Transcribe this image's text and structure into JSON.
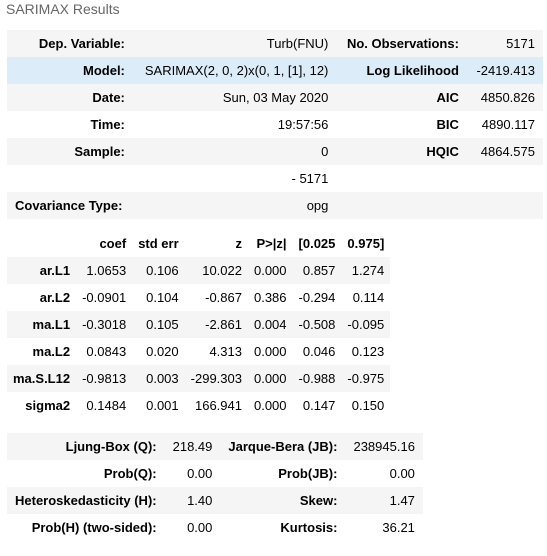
{
  "caption": "SARIMAX Results",
  "summary": {
    "rows": [
      [
        "Dep. Variable:",
        "Turb(FNU)",
        "No. Observations:",
        "5171"
      ],
      [
        "Model:",
        "SARIMAX(2, 0, 2)x(0, 1, [1], 12)",
        "Log Likelihood",
        "-2419.413"
      ],
      [
        "Date:",
        "Sun, 03 May 2020",
        "AIC",
        "4850.826"
      ],
      [
        "Time:",
        "19:57:56",
        "BIC",
        "4890.117"
      ],
      [
        "Sample:",
        "0",
        "HQIC",
        "4864.575"
      ],
      [
        "",
        "- 5171",
        "",
        ""
      ],
      [
        "Covariance Type:",
        "opg",
        "",
        ""
      ]
    ]
  },
  "coef": {
    "headers": [
      "",
      "coef",
      "std err",
      "z",
      "P>|z|",
      "[0.025",
      "0.975]"
    ],
    "rows": [
      [
        "ar.L1",
        "1.0653",
        "0.106",
        "10.022",
        "0.000",
        "0.857",
        "1.274"
      ],
      [
        "ar.L2",
        "-0.0901",
        "0.104",
        "-0.867",
        "0.386",
        "-0.294",
        "0.114"
      ],
      [
        "ma.L1",
        "-0.3018",
        "0.105",
        "-2.861",
        "0.004",
        "-0.508",
        "-0.095"
      ],
      [
        "ma.L2",
        "0.0843",
        "0.020",
        "4.313",
        "0.000",
        "0.046",
        "0.123"
      ],
      [
        "ma.S.L12",
        "-0.9813",
        "0.003",
        "-299.303",
        "0.000",
        "-0.988",
        "-0.975"
      ],
      [
        "sigma2",
        "0.1484",
        "0.001",
        "166.941",
        "0.000",
        "0.147",
        "0.150"
      ]
    ]
  },
  "tests": {
    "rows": [
      [
        "Ljung-Box (Q):",
        "218.49",
        "Jarque-Bera (JB):",
        "238945.16"
      ],
      [
        "Prob(Q):",
        "0.00",
        "Prob(JB):",
        "0.00"
      ],
      [
        "Heteroskedasticity (H):",
        "1.40",
        "Skew:",
        "1.47"
      ],
      [
        "Prob(H) (two-sided):",
        "0.00",
        "Kurtosis:",
        "36.21"
      ]
    ]
  }
}
